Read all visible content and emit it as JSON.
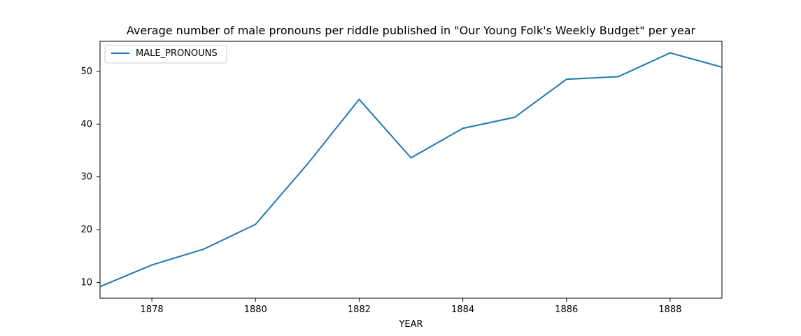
{
  "chart_data": {
    "type": "line",
    "title": "Average number of male pronouns per riddle published in \"Our Young Folk's Weekly Budget\" per year",
    "xlabel": "YEAR",
    "ylabel": "",
    "xlim": [
      1877,
      1889
    ],
    "ylim": [
      7,
      55.7
    ],
    "x_ticks": [
      1878,
      1880,
      1882,
      1884,
      1886,
      1888
    ],
    "y_ticks": [
      10,
      20,
      30,
      40,
      50
    ],
    "grid": false,
    "legend_position": "upper-left",
    "series": [
      {
        "name": "MALE_PRONOUNS",
        "color": "#1f77b4",
        "x": [
          1877,
          1878,
          1879,
          1880,
          1881,
          1882,
          1883,
          1884,
          1885,
          1886,
          1887,
          1888,
          1889
        ],
        "y": [
          9.2,
          13.3,
          16.3,
          21.0,
          32.4,
          44.7,
          33.6,
          39.2,
          41.3,
          48.5,
          49.0,
          53.5,
          50.8
        ]
      }
    ]
  }
}
